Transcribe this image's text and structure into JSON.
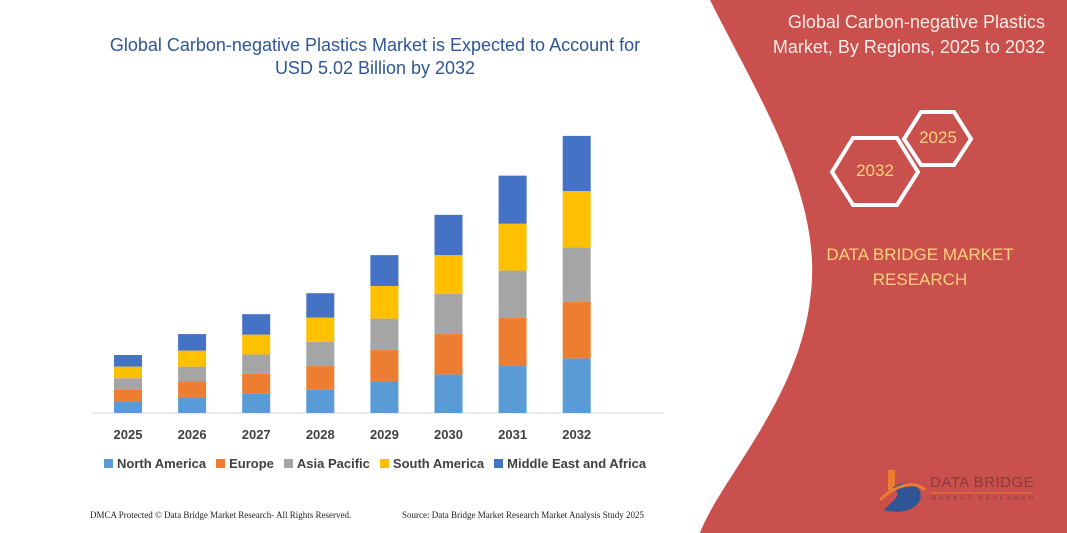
{
  "header": {
    "title": "Global Carbon-negative Plastics Market is Expected to Account for USD 5.02 Billion by 2032"
  },
  "side_panel": {
    "title": "Global Carbon-negative Plastics Market, By Regions, 2025 to 2032",
    "hex_start": "2025",
    "hex_end": "2032",
    "brand": "DATA BRIDGE MARKET RESEARCH",
    "logo_text": "DATA BRIDGE",
    "logo_sub": "MARKET RESEARCH",
    "panel_color": "#c9504c"
  },
  "footer": {
    "left": "DMCA Protected © Data Bridge Market Research- All Rights Reserved.",
    "right": "Source: Data Bridge Market Research Market Analysis Study 2025"
  },
  "chart_data": {
    "type": "bar",
    "stacked": true,
    "title": "Global Carbon-negative Plastics Market is Expected to Account for USD 5.02 Billion by 2032",
    "xlabel": "",
    "ylabel": "",
    "y_axis_visible": false,
    "grid": false,
    "legend_position": "bottom",
    "categories": [
      "2025",
      "2026",
      "2027",
      "2028",
      "2029",
      "2030",
      "2031",
      "2032"
    ],
    "series": [
      {
        "name": "North America",
        "color": "#5b9bd5",
        "values": [
          0.21,
          0.28,
          0.35,
          0.43,
          0.57,
          0.7,
          0.85,
          0.99
        ]
      },
      {
        "name": "Europe",
        "color": "#ed7d31",
        "values": [
          0.22,
          0.29,
          0.36,
          0.42,
          0.57,
          0.73,
          0.87,
          1.02
        ]
      },
      {
        "name": "Asia Pacific",
        "color": "#a5a5a5",
        "values": [
          0.2,
          0.27,
          0.35,
          0.44,
          0.57,
          0.73,
          0.86,
          0.99
        ]
      },
      {
        "name": "South America",
        "color": "#ffc000",
        "values": [
          0.21,
          0.29,
          0.36,
          0.44,
          0.59,
          0.7,
          0.85,
          1.02
        ]
      },
      {
        "name": "Middle East and Africa",
        "color": "#4472c4",
        "values": [
          0.21,
          0.3,
          0.37,
          0.44,
          0.56,
          0.73,
          0.87,
          1.0
        ]
      }
    ]
  }
}
